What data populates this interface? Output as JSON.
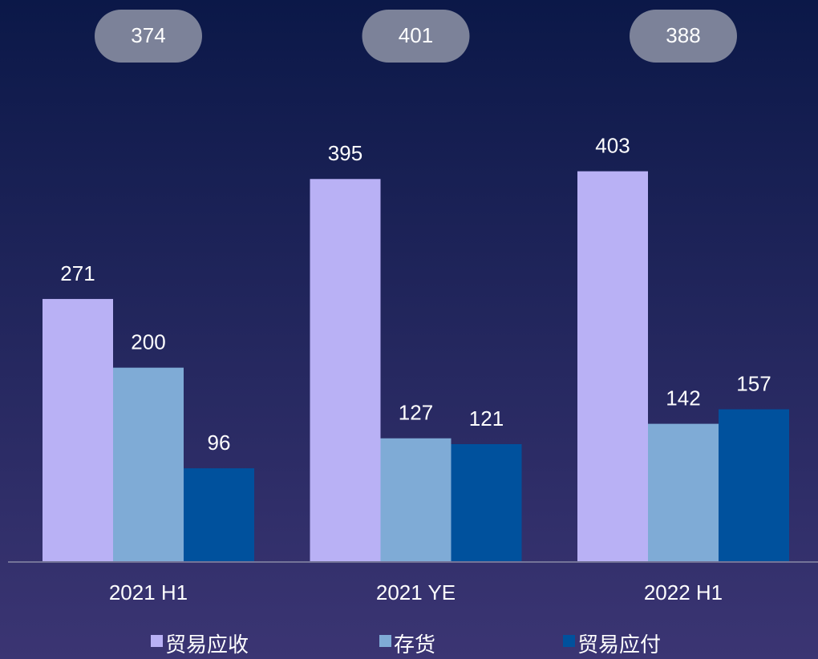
{
  "chart_data": {
    "type": "bar",
    "categories": [
      "2021 H1",
      "2021 YE",
      "2022 H1"
    ],
    "series": [
      {
        "name": "贸易应收",
        "color": "#b9b1f5",
        "values": [
          271,
          395,
          403
        ]
      },
      {
        "name": "存货",
        "color": "#7fabd6",
        "values": [
          200,
          127,
          142
        ]
      },
      {
        "name": "贸易应付",
        "color": "#00519d",
        "values": [
          96,
          121,
          157
        ]
      }
    ],
    "totals": [
      374,
      401,
      388
    ],
    "ylim": [
      0,
      580
    ]
  }
}
